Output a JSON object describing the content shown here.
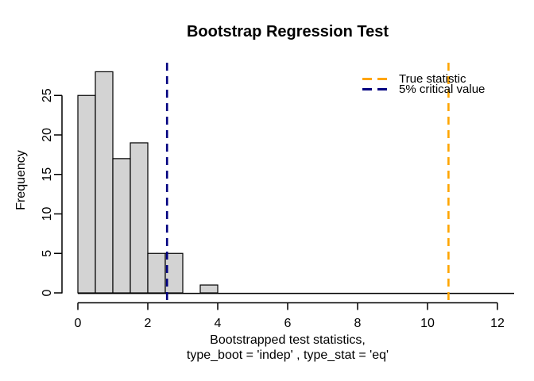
{
  "chart_data": {
    "type": "bar",
    "variant": "histogram",
    "title": "Bootstrap Regression Test",
    "xlabel_line1": "Bootstrapped test statistics,",
    "xlabel_line2": "type_boot = 'indep' , type_stat = 'eq'",
    "ylabel": "Frequency",
    "bins": {
      "start": 0,
      "width": 0.5
    },
    "counts": [
      25,
      28,
      17,
      19,
      5,
      5,
      0,
      1
    ],
    "x_ticks": [
      0,
      2,
      4,
      6,
      8,
      10,
      12
    ],
    "y_ticks": [
      0,
      5,
      10,
      15,
      20,
      25
    ],
    "xlim": [
      0,
      12
    ],
    "ylim": [
      0,
      28
    ],
    "grid": false,
    "legend_position": "top-right",
    "bar_fill": "#D3D3D3",
    "bar_stroke": "#000000",
    "axis_color": "#000000",
    "vlines": [
      {
        "id": "true-statistic",
        "value": 10.6,
        "color": "#FFA500",
        "style": "dashed",
        "label": "True statistic"
      },
      {
        "id": "critical-value",
        "value": 2.55,
        "color": "#000080",
        "style": "dashed",
        "label": "5% critical value"
      }
    ]
  }
}
